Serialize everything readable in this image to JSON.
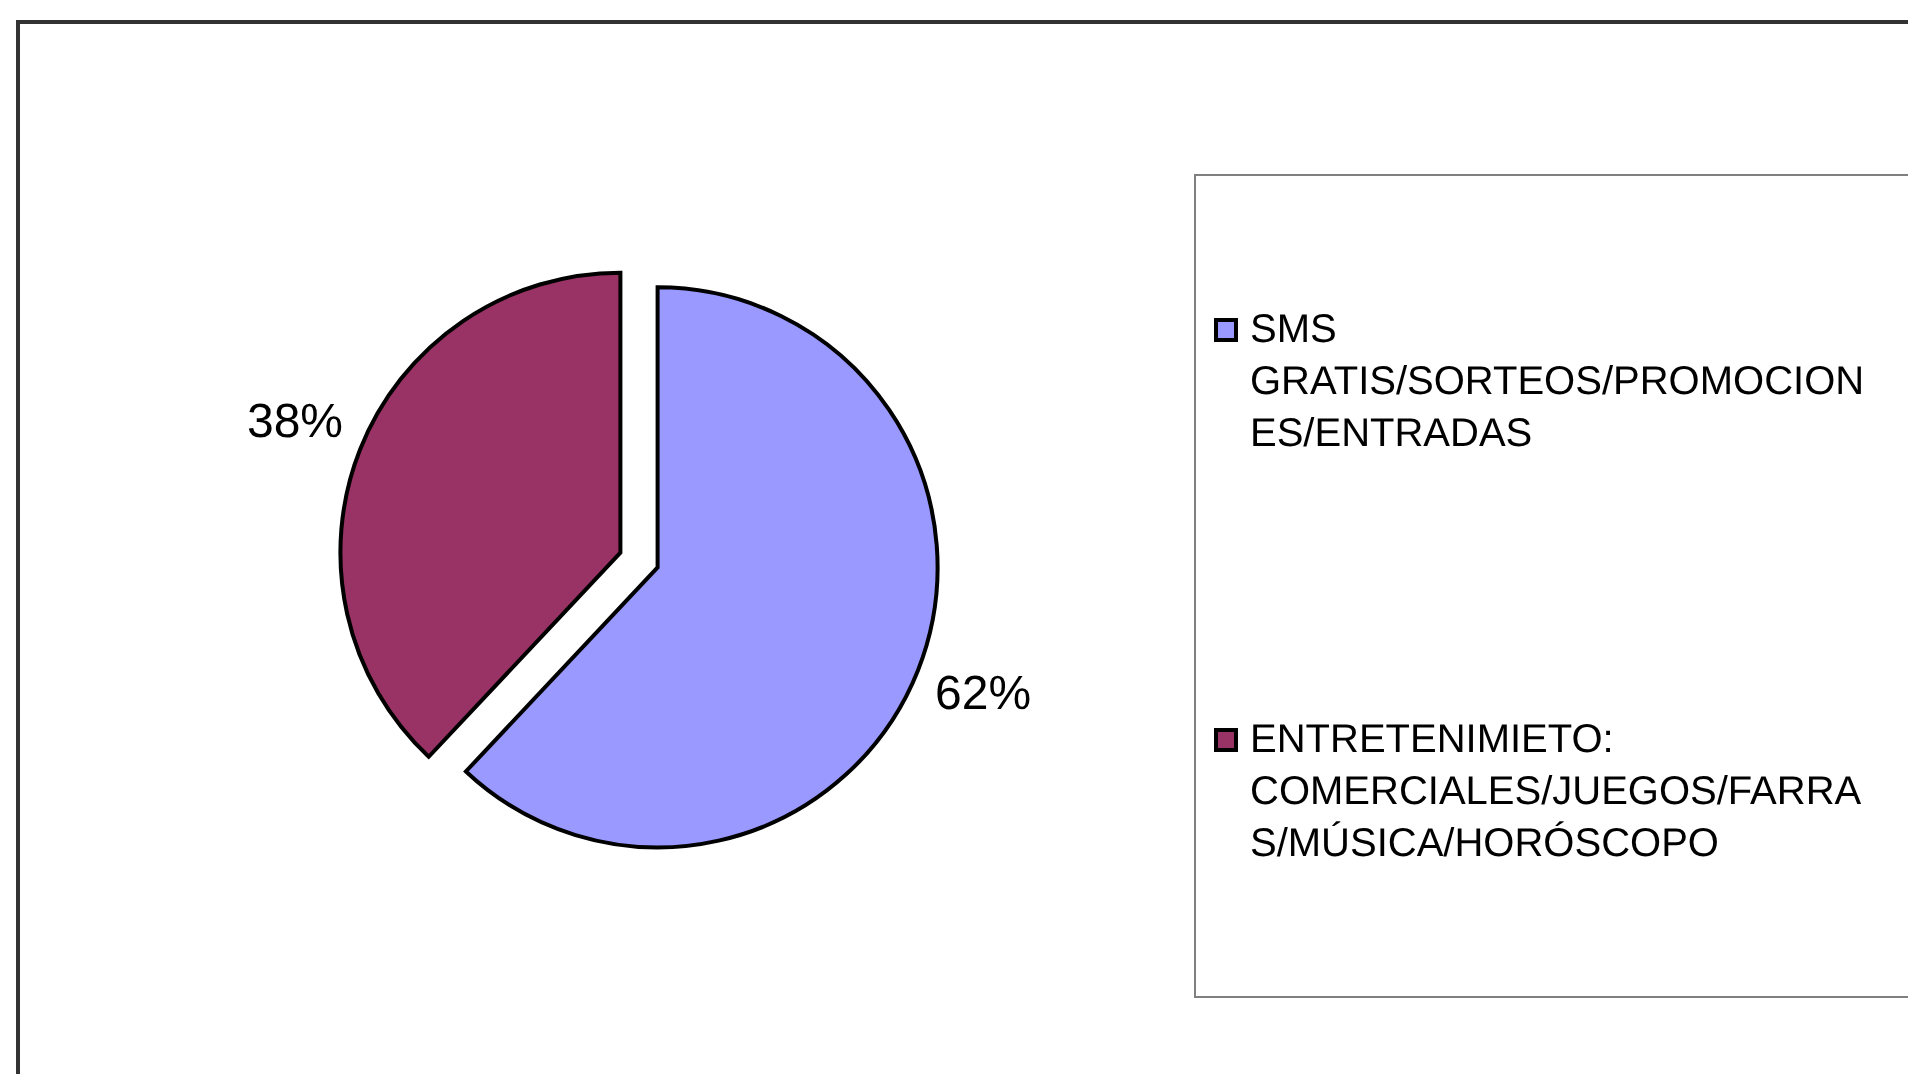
{
  "chart_data": {
    "type": "pie",
    "categories": [
      "SMS GRATIS/SORTEOS/PROMOCIONES/ENTRADAS",
      "ENTRETENIMIETO: COMERCIALES/JUEGOS/FARRAS/MÚSICA/HORÓSCOPO"
    ],
    "values": [
      62,
      38
    ],
    "colors": [
      "#9999ff",
      "#993366"
    ],
    "value_labels": [
      "62%",
      "38%"
    ],
    "legend": "right"
  }
}
